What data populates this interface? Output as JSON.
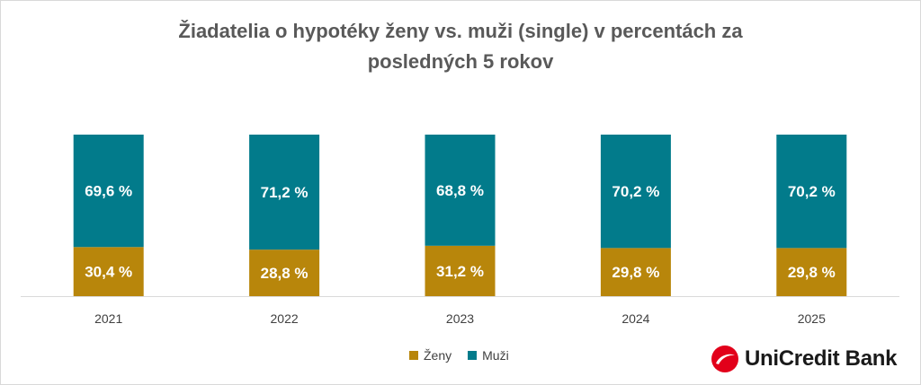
{
  "chart_data": {
    "type": "bar",
    "stacked": true,
    "title": "Žiadatelia o hypotéky ženy vs. muži (single) v percentách za posledných 5 rokov",
    "title_lines": [
      "Žiadatelia o hypotéky ženy vs. muži (single) v percentách za",
      "posledných 5 rokov"
    ],
    "categories": [
      "2021",
      "2022",
      "2023",
      "2024",
      "2025"
    ],
    "series": [
      {
        "name": "Ženy",
        "color": "#b8860b",
        "values": [
          30.4,
          28.8,
          31.2,
          29.8,
          29.8
        ],
        "labels": [
          "30,4 %",
          "28,8 %",
          "31,2 %",
          "29,8 %",
          "29,8 %"
        ]
      },
      {
        "name": "Muži",
        "color": "#027b8b",
        "values": [
          69.6,
          71.2,
          68.8,
          70.2,
          70.2
        ],
        "labels": [
          "69,6 %",
          "71,2 %",
          "68,8 %",
          "70,2 %",
          "70,2 %"
        ]
      }
    ],
    "ylim": [
      0,
      100
    ],
    "grid": false,
    "legend": "bottom",
    "xlabel": "",
    "ylabel": ""
  },
  "legend": {
    "items": [
      "Ženy",
      "Muži"
    ]
  },
  "logo": {
    "text": "UniCredit Bank",
    "icon": "unicredit-logo-icon",
    "color": "#e2001a"
  }
}
